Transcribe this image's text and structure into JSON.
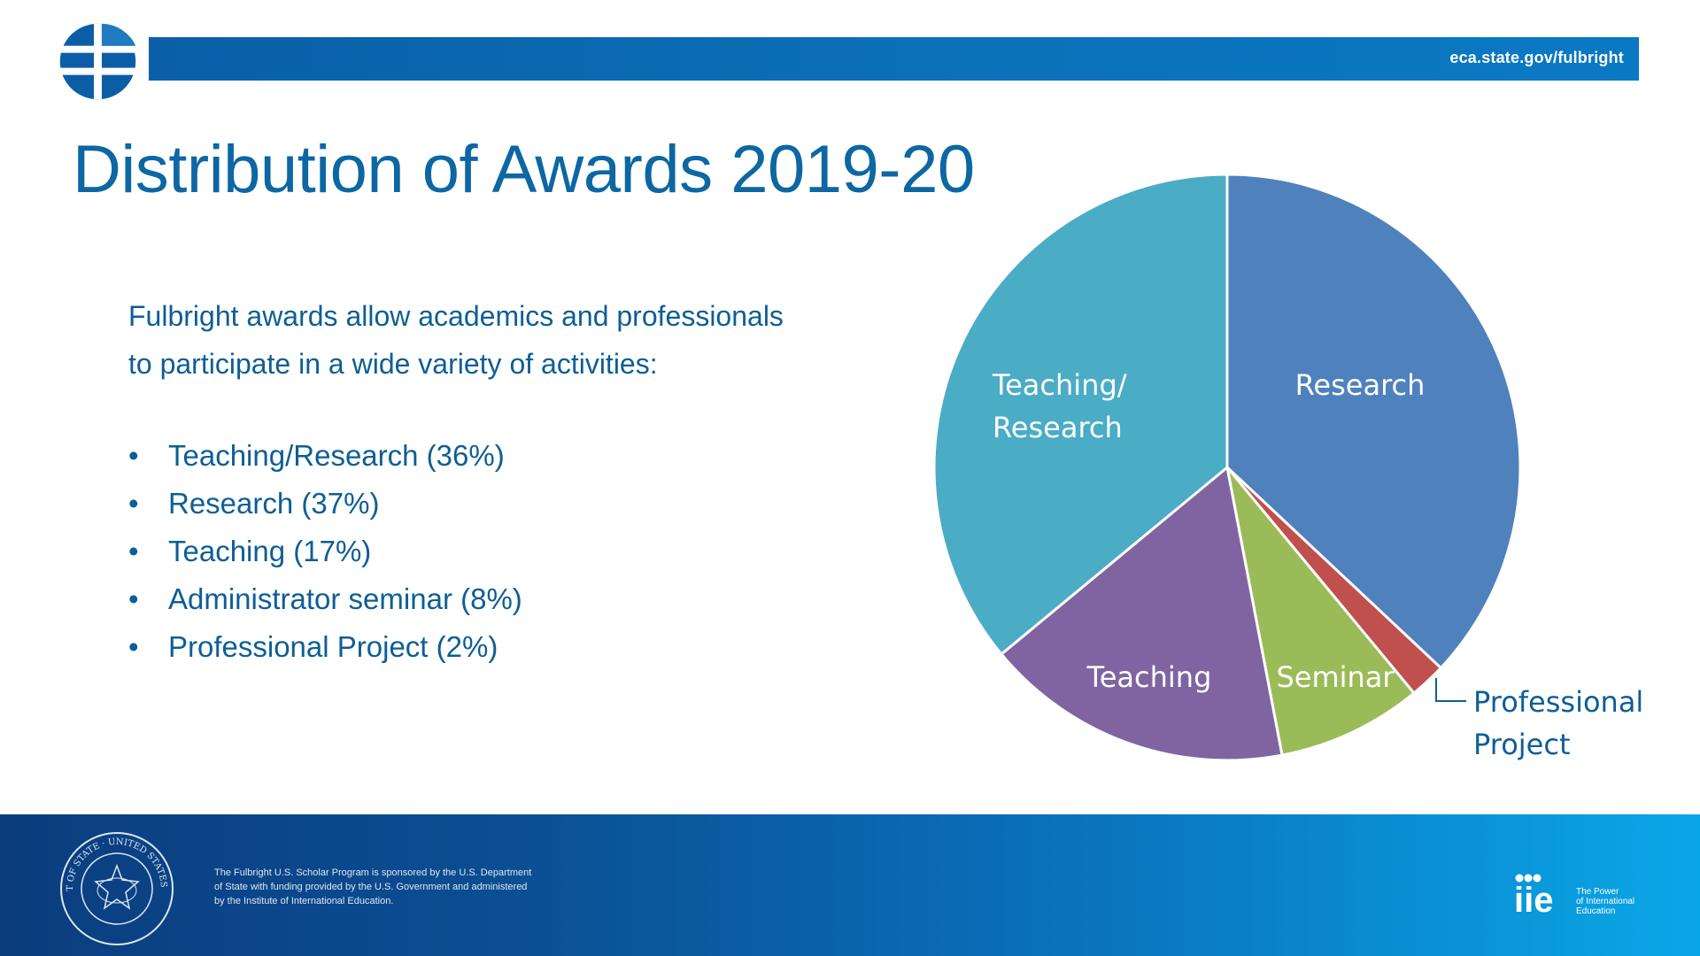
{
  "header": {
    "url": "eca.state.gov/fulbright"
  },
  "slide": {
    "title": "Distribution of Awards 2019-20",
    "intro_line1": "Fulbright awards allow academics and professionals",
    "intro_line2": "to participate in a wide variety of activities:",
    "bullets": [
      "Teaching/Research (36%)",
      "Research (37%)",
      "Teaching (17%)",
      "Administrator seminar (8%)",
      "Professional Project (2%)"
    ]
  },
  "chart_data": {
    "type": "pie",
    "categories": [
      "Research",
      "Professional Project",
      "Seminar",
      "Teaching",
      "Teaching/Research"
    ],
    "values": [
      37,
      2,
      8,
      17,
      36
    ],
    "colors": [
      "#4f81bd",
      "#c0504d",
      "#9bbb59",
      "#8064a2",
      "#4bacc6"
    ],
    "labels": {
      "research": "Research",
      "seminar": "Seminar",
      "teaching": "Teaching",
      "teaching_research_line1": "Teaching/",
      "teaching_research_line2": "Research",
      "professional_line1": "Professional",
      "professional_line2": "Project"
    },
    "start_angle": "12 o'clock",
    "direction": "clockwise",
    "legend": "none"
  },
  "footer": {
    "line1": "The Fulbright U.S. Scholar Program is sponsored by the U.S. Department",
    "line2": "of State with funding provided by the U.S. Government and administered",
    "line3": "by the Institute of International Education.",
    "seal_text": "DEPARTMENT OF STATE · UNITED STATES OF AMERICA",
    "iie_logo": "iie",
    "iie_tagline1": "The Power",
    "iie_tagline2": "of International",
    "iie_tagline3": "Education"
  },
  "colors": {
    "brand_blue": "#0c67a3",
    "header_bar": "#0b71b9",
    "text_blue": "#0e5e95"
  }
}
